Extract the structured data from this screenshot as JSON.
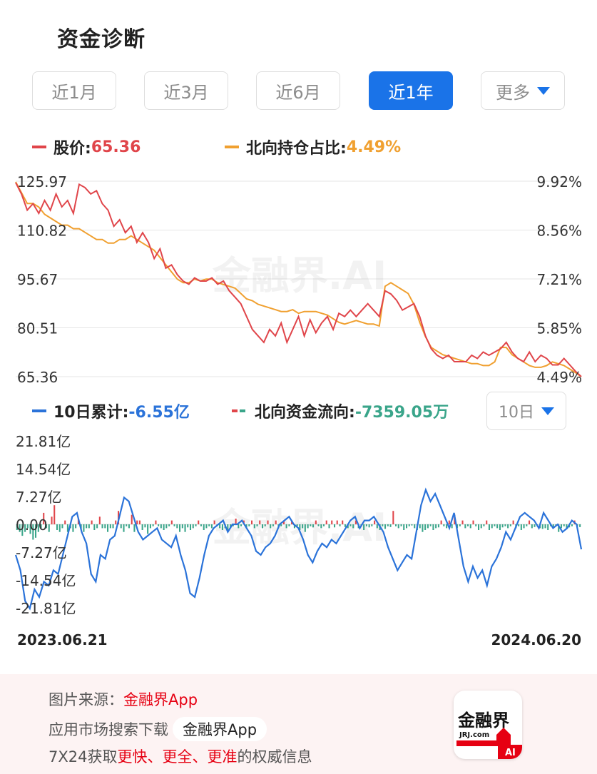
{
  "header": {
    "title": "资金诊断"
  },
  "tabs": [
    {
      "label": "近1月",
      "active": false
    },
    {
      "label": "近3月",
      "active": false
    },
    {
      "label": "近6月",
      "active": false
    },
    {
      "label": "近1年",
      "active": true
    },
    {
      "label": "更多",
      "active": false
    }
  ],
  "legend_top": {
    "price_label": "股价: ",
    "price_value": "65.36",
    "ratio_label": "北向持仓占比: ",
    "ratio_value": "4.49%"
  },
  "legend_bottom": {
    "cum_label": "10日累计: ",
    "cum_value": "-6.55亿",
    "flow_label": "北向资金流向: ",
    "flow_value": "-7359.05万",
    "period_select": "10日"
  },
  "dates": {
    "start": "2023.06.21",
    "end": "2024.06.20"
  },
  "watermark": "金融界.AI",
  "colors": {
    "price": "#e0454a",
    "ratio": "#f0a030",
    "cumulative": "#2b73d9",
    "inflow": "#e0454a",
    "outflow": "#3aa58a",
    "accent": "#1a73e8"
  },
  "chart_data": [
    {
      "type": "line",
      "title": "",
      "x_range": [
        "2023.06.21",
        "2024.06.20"
      ],
      "left_axis": {
        "ticks": [
          "125.97",
          "110.82",
          "95.67",
          "80.51",
          "65.36"
        ],
        "range": [
          65.36,
          125.97
        ]
      },
      "right_axis": {
        "ticks": [
          "9.92%",
          "8.56%",
          "7.21%",
          "5.85%",
          "4.49%"
        ],
        "range": [
          4.49,
          9.92
        ]
      },
      "series": [
        {
          "name": "股价",
          "axis": "left",
          "values": [
            125.5,
            122,
            117,
            119,
            116,
            120,
            117,
            122,
            118,
            120,
            116,
            125,
            124,
            122,
            123,
            119,
            117,
            112,
            114,
            110,
            112,
            107,
            110,
            107,
            102,
            105,
            99,
            100,
            97,
            95,
            94,
            96,
            95,
            95,
            96,
            94,
            95,
            92,
            90,
            88,
            84,
            80,
            78,
            76,
            80,
            78,
            82,
            76,
            80,
            84,
            78,
            83,
            79,
            82,
            84,
            80,
            85,
            84,
            86,
            84,
            86,
            88,
            86,
            84,
            92,
            91,
            89,
            86,
            87,
            88,
            84,
            78,
            74,
            72,
            71,
            72,
            70,
            70,
            70,
            72,
            71,
            73,
            72,
            73,
            74,
            76,
            73,
            71,
            70,
            73,
            70,
            72,
            71,
            69,
            69,
            71,
            69,
            67,
            65.36
          ]
        },
        {
          "name": "北向持仓占比",
          "axis": "right",
          "values": [
            9.9,
            9.6,
            9.3,
            9.3,
            9.2,
            9.0,
            8.9,
            8.8,
            8.7,
            8.7,
            8.6,
            8.6,
            8.5,
            8.4,
            8.3,
            8.3,
            8.2,
            8.2,
            8.3,
            8.3,
            8.4,
            8.3,
            8.2,
            8.1,
            8.0,
            7.8,
            7.6,
            7.4,
            7.2,
            7.1,
            7.1,
            7.2,
            7.15,
            7.2,
            7.2,
            7.1,
            7.05,
            7.0,
            6.95,
            6.8,
            6.65,
            6.6,
            6.5,
            6.45,
            6.4,
            6.35,
            6.3,
            6.3,
            6.35,
            6.25,
            6.3,
            6.3,
            6.3,
            6.25,
            6.2,
            6.1,
            6.0,
            5.95,
            6.0,
            6.05,
            6.0,
            5.95,
            5.95,
            5.9,
            7.0,
            7.1,
            7.0,
            6.9,
            6.8,
            6.5,
            6.0,
            5.6,
            5.3,
            5.2,
            5.1,
            5.05,
            5.0,
            4.95,
            4.9,
            4.85,
            4.85,
            4.8,
            4.8,
            4.9,
            5.3,
            5.3,
            5.1,
            5.0,
            4.9,
            4.8,
            4.75,
            4.75,
            4.8,
            4.9,
            4.85,
            4.8,
            4.7,
            4.6,
            4.49
          ]
        }
      ]
    },
    {
      "type": "bar",
      "title": "",
      "x_range": [
        "2023.06.21",
        "2024.06.20"
      ],
      "y_axis": {
        "ticks": [
          "21.81亿",
          "14.54亿",
          "7.27亿",
          "0.00",
          "-7.27亿",
          "-14.54亿",
          "-21.81亿"
        ],
        "range": [
          -21.81,
          21.81
        ],
        "unit": "亿"
      },
      "series": [
        {
          "name": "10日累计",
          "type": "line",
          "values": [
            -8,
            -12,
            -20,
            -22,
            -17,
            -19,
            -15,
            -16,
            -12,
            -13,
            -8,
            -3,
            2,
            3,
            -2,
            -5,
            -13,
            -15,
            -8,
            -9,
            -4,
            -3,
            2,
            7,
            6,
            2,
            -2,
            -4,
            -3,
            -2,
            -1,
            -4,
            -5,
            -6,
            -3,
            -8,
            -12,
            -18,
            -19,
            -14,
            -8,
            -3,
            -1,
            0,
            1,
            -2,
            0,
            0,
            1,
            -1,
            -3,
            -7,
            -8,
            -6,
            -5,
            -3,
            0,
            1,
            2,
            0,
            -1,
            -4,
            -8,
            -10,
            -7,
            -5,
            -6,
            -4,
            -5,
            -3,
            -1,
            1,
            2,
            -1,
            1,
            1,
            2,
            0,
            -2,
            -6,
            -9,
            -12,
            -10,
            -8,
            -9,
            -2,
            5,
            9,
            6,
            8,
            5,
            2,
            -1,
            3,
            -4,
            -11,
            -15,
            -11,
            -14,
            -12,
            -16,
            -11,
            -9,
            -6,
            -2,
            -4,
            -1,
            2,
            3,
            2,
            1,
            -1,
            3,
            1,
            -1,
            0,
            -2,
            -1,
            1,
            0,
            -6.55
          ]
        },
        {
          "name": "北向资金流向",
          "type": "bar",
          "values": [
            -1.5,
            -2,
            -3,
            -2,
            -1,
            -2.5,
            -4,
            -3.5,
            -2,
            -1,
            3,
            -1,
            -2,
            2,
            5,
            -1.5,
            -2,
            -1,
            1,
            -2,
            -1,
            -2,
            -1,
            1.5,
            -1.2,
            -2,
            -1,
            -1,
            1,
            -1.5,
            -1,
            2,
            -1,
            -1,
            -2,
            -1,
            -1,
            1,
            3.5,
            -1,
            -2,
            -0.5,
            -1,
            2.5,
            -2,
            1,
            1,
            -1.5,
            -0.8,
            -2.5,
            -1,
            -0.5,
            1,
            -0.5,
            -1,
            -1.5,
            -1,
            -0.5,
            1,
            -0.5,
            -1,
            -2,
            -1,
            -2,
            -0.8,
            -1.5,
            -1,
            -0.5,
            1,
            -0.5,
            -1.5,
            -1,
            -0.5,
            -1,
            1,
            -0.5,
            -1,
            -1.5,
            -1,
            -1.6,
            -1,
            -0.5,
            1.5,
            -1,
            -0.5,
            1,
            -1,
            -0.5,
            1,
            -1,
            -0.5,
            1,
            -1,
            -0.5,
            1,
            -1,
            -0.5,
            1,
            -1,
            -0.5,
            1,
            -1,
            -0.5,
            1,
            -1,
            -0.5,
            -1.5,
            -1,
            -2,
            -1,
            -0.5,
            -0.8,
            1,
            -0.5,
            -1,
            -0.5,
            1,
            -1,
            1,
            -0.8,
            1,
            -0.5,
            1,
            -0.7,
            -1,
            -0.5,
            -1,
            1,
            -1,
            -0.5,
            -1.5,
            -0.5,
            -0.8,
            -0.5,
            1,
            -1,
            -1.5,
            -0.5,
            -1.2,
            -0.5,
            -0.7,
            3.5,
            -0.5,
            -1,
            -0.5,
            -1.5,
            -1,
            -0.5,
            -0.3,
            -1,
            -1.5,
            -1,
            -2,
            -1.5,
            -1,
            -0.5,
            -1.5,
            -1,
            -0.8,
            1,
            -0.5,
            -1,
            1,
            -1,
            2.5,
            -1,
            -0.5,
            1,
            -1,
            -0.5,
            -1,
            1,
            -0.5,
            -1.5,
            -1,
            -0.5,
            1,
            -1.5,
            -1,
            -0.5,
            -1,
            -1.5,
            -0.8,
            -0.5,
            -1,
            -0.5,
            1,
            -1,
            -0.5,
            -1.5,
            -1,
            -0.5,
            1,
            -1,
            -0.7,
            -0.5,
            -1,
            -1.2,
            -1,
            -1.5,
            -0.5,
            -1,
            -0.5,
            -2,
            -1,
            -0.5,
            -1,
            -0.8,
            -0.5,
            1,
            -0.5,
            -0.73
          ]
        }
      ]
    }
  ],
  "footer": {
    "source_label": "图片来源：",
    "source_value": "金融界App",
    "download_text": "应用市场搜索下载",
    "download_app": "金融界App",
    "slogan_a": "7X24获取",
    "slogan_b": "更快、更全、更准",
    "slogan_c": "的权威信息",
    "logo_name": "金融界",
    "logo_sub": "JRJ.com",
    "logo_badge": "AI"
  }
}
